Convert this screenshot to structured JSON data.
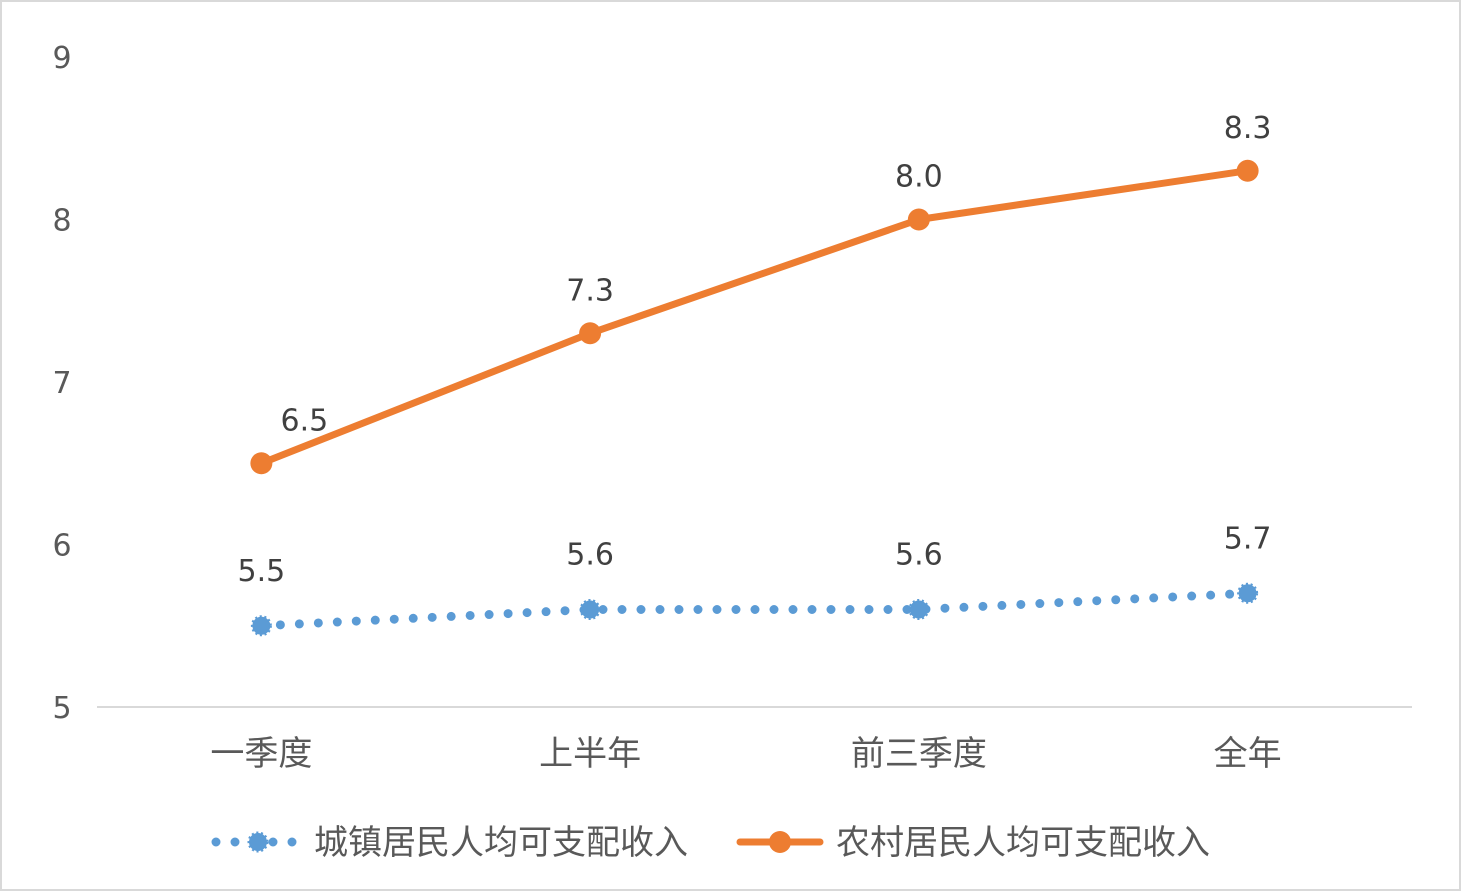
{
  "chart_data": {
    "type": "line",
    "categories": [
      "一季度",
      "上半年",
      "前三季度",
      "全年"
    ],
    "ylim": [
      5,
      9
    ],
    "yticks": [
      5,
      6,
      7,
      8,
      9
    ],
    "grid": false,
    "legend_position": "bottom",
    "series": [
      {
        "name": "城镇居民人均可支配收入",
        "values": [
          5.5,
          5.6,
          5.6,
          5.7
        ],
        "labels": [
          "5.5",
          "5.6",
          "5.6",
          "5.7"
        ],
        "color": "#5b9bd5",
        "style": "dotted",
        "marker": "circle"
      },
      {
        "name": "农村居民人均可支配收入",
        "values": [
          6.5,
          7.3,
          8.0,
          8.3
        ],
        "labels": [
          "6.5",
          "7.3",
          "8.0",
          "8.3"
        ],
        "color": "#ed7d31",
        "style": "solid",
        "marker": "circle"
      }
    ]
  }
}
